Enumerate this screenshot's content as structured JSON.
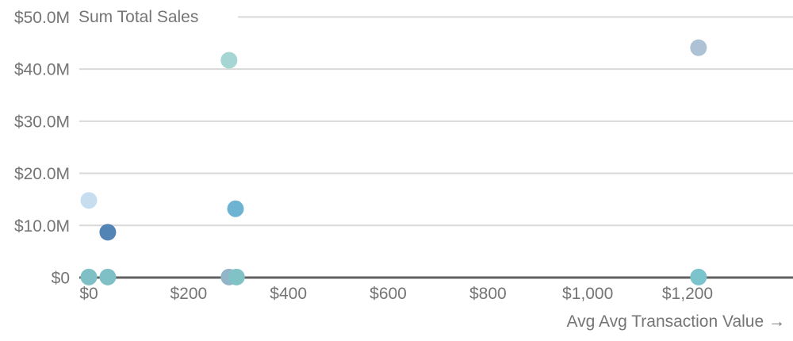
{
  "chart_data": {
    "type": "scatter",
    "title": "",
    "ylabel": "Sum Total Sales",
    "xlabel": "Avg Avg Transaction Value →",
    "xlim": [
      0,
      1400
    ],
    "ylim": [
      0,
      50
    ],
    "grid": true,
    "legend": false,
    "y_ticks": [
      {
        "value": 0,
        "label": "$0"
      },
      {
        "value": 10,
        "label": "$10.0M"
      },
      {
        "value": 20,
        "label": "$20.0M"
      },
      {
        "value": 30,
        "label": "$30.0M"
      },
      {
        "value": 40,
        "label": "$40.0M"
      },
      {
        "value": 50,
        "label": "$50.0M"
      }
    ],
    "x_ticks": [
      {
        "value": 0,
        "label": "$0"
      },
      {
        "value": 200,
        "label": "$200"
      },
      {
        "value": 400,
        "label": "$400"
      },
      {
        "value": 600,
        "label": "$600"
      },
      {
        "value": 800,
        "label": "$800"
      },
      {
        "value": 1000,
        "label": "$1,000"
      },
      {
        "value": 1200,
        "label": "$1,200"
      }
    ],
    "points": [
      {
        "x": 0,
        "y_millions": 14.8,
        "color": "#c7def1"
      },
      {
        "x": 38,
        "y_millions": 8.7,
        "color": "#5384b6"
      },
      {
        "x": 0,
        "y_millions": 0.1,
        "color": "#7ec0c5"
      },
      {
        "x": 38,
        "y_millions": 0.1,
        "color": "#7ec0c5"
      },
      {
        "x": 281,
        "y_millions": 41.7,
        "color": "#a5d6d3"
      },
      {
        "x": 294,
        "y_millions": 13.2,
        "color": "#6eb3d1"
      },
      {
        "x": 281,
        "y_millions": 0.1,
        "color": "#92b5c8"
      },
      {
        "x": 296,
        "y_millions": 0.1,
        "color": "#81c2c6"
      },
      {
        "x": 1222,
        "y_millions": 44.1,
        "color": "#adc2d5"
      },
      {
        "x": 1222,
        "y_millions": 0.1,
        "color": "#7bc3cd"
      }
    ],
    "colors": {
      "grid_line": "#d9d9d9",
      "axis_line": "#616161",
      "label_text": "#757575"
    }
  }
}
